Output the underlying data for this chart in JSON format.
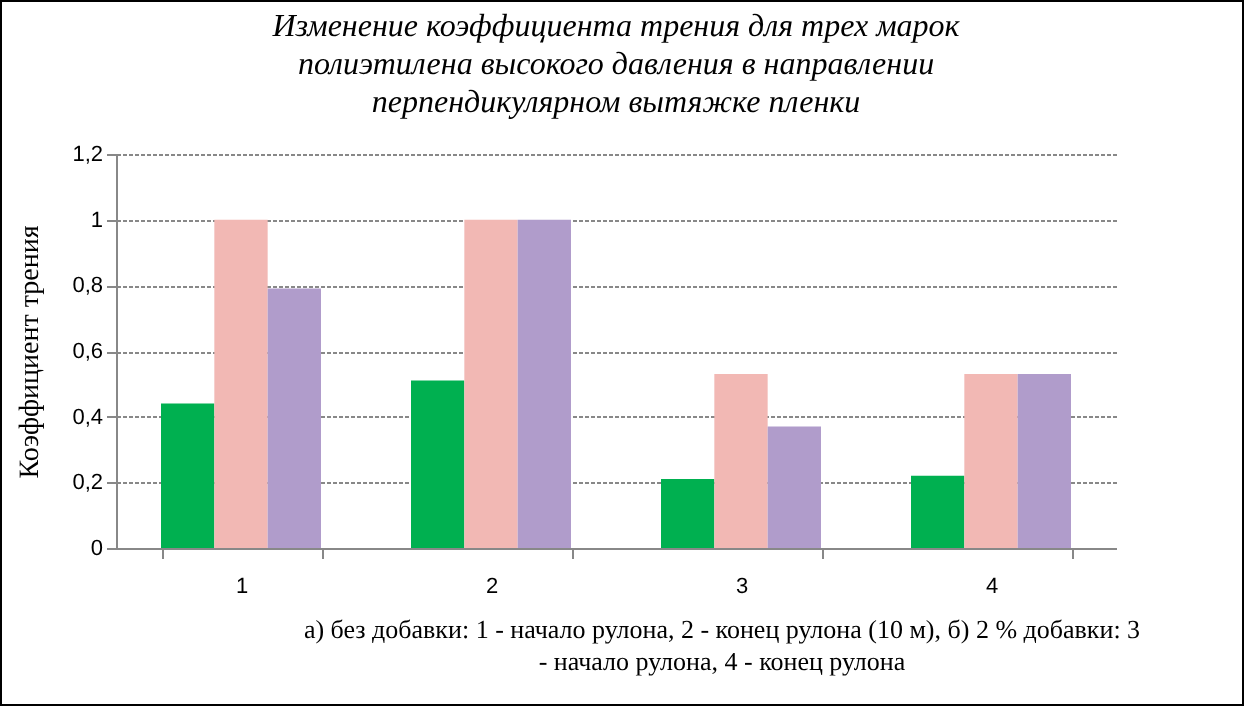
{
  "chart_data": {
    "type": "bar",
    "title": "Изменение коэффициента трения для трех марок\nполиэтилена высокого давления в направлении\nперпендикулярном вытяжке пленки",
    "ylabel": "Коэффициент трения",
    "categories": [
      "1",
      "2",
      "3",
      "4"
    ],
    "series": [
      {
        "color": "#00b050",
        "values": [
          0.44,
          0.51,
          0.21,
          0.22
        ]
      },
      {
        "color": "#f2b8b4",
        "values": [
          1.0,
          1.0,
          0.53,
          0.53
        ]
      },
      {
        "color": "#b09ccb",
        "values": [
          0.79,
          1.0,
          0.37,
          0.53
        ]
      }
    ],
    "ylim": [
      0,
      1.2
    ],
    "yticks": [
      {
        "value": 0,
        "label": "0"
      },
      {
        "value": 0.2,
        "label": "0,2"
      },
      {
        "value": 0.4,
        "label": "0,4"
      },
      {
        "value": 0.6,
        "label": "0,6"
      },
      {
        "value": 0.8,
        "label": "0,8"
      },
      {
        "value": 1,
        "label": "1"
      },
      {
        "value": 1.2,
        "label": "1,2"
      }
    ],
    "grid": "y",
    "legend": false,
    "annotations": [
      "а) без добавки: 1 - начало рулона, 2 - конец рулона (10 м), б) 2 % добавки: 3 - начало рулона, 4 - конец рулона"
    ]
  }
}
